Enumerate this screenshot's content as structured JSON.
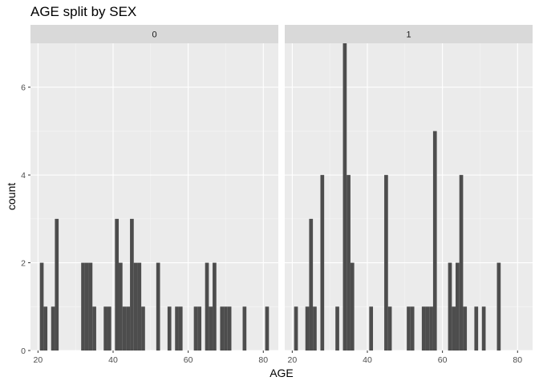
{
  "chart_data": {
    "type": "bar",
    "title": "AGE split by SEX",
    "xlabel": "AGE",
    "ylabel": "count",
    "xlim": [
      18,
      84
    ],
    "ylim": [
      0,
      7
    ],
    "x_ticks": [
      20,
      40,
      60,
      80
    ],
    "y_ticks": [
      0,
      2,
      4,
      6
    ],
    "grid": true,
    "bar_color": "#4d4d4d",
    "panel_background": "#ebebeb",
    "strip_background": "#d9d9d9",
    "facets": [
      {
        "label": "0",
        "bins": [
          {
            "x": 21,
            "count": 2
          },
          {
            "x": 22,
            "count": 1
          },
          {
            "x": 24,
            "count": 1
          },
          {
            "x": 25,
            "count": 3
          },
          {
            "x": 32,
            "count": 2
          },
          {
            "x": 33,
            "count": 2
          },
          {
            "x": 34,
            "count": 2
          },
          {
            "x": 35,
            "count": 1
          },
          {
            "x": 38,
            "count": 1
          },
          {
            "x": 39,
            "count": 1
          },
          {
            "x": 41,
            "count": 3
          },
          {
            "x": 42,
            "count": 2
          },
          {
            "x": 43,
            "count": 1
          },
          {
            "x": 44,
            "count": 1
          },
          {
            "x": 45,
            "count": 3
          },
          {
            "x": 46,
            "count": 2
          },
          {
            "x": 47,
            "count": 2
          },
          {
            "x": 48,
            "count": 1
          },
          {
            "x": 52,
            "count": 2
          },
          {
            "x": 55,
            "count": 1
          },
          {
            "x": 57,
            "count": 1
          },
          {
            "x": 58,
            "count": 1
          },
          {
            "x": 62,
            "count": 1
          },
          {
            "x": 63,
            "count": 1
          },
          {
            "x": 65,
            "count": 2
          },
          {
            "x": 66,
            "count": 1
          },
          {
            "x": 67,
            "count": 2
          },
          {
            "x": 69,
            "count": 1
          },
          {
            "x": 70,
            "count": 1
          },
          {
            "x": 71,
            "count": 1
          },
          {
            "x": 75,
            "count": 1
          },
          {
            "x": 81,
            "count": 1
          }
        ]
      },
      {
        "label": "1",
        "bins": [
          {
            "x": 21,
            "count": 1
          },
          {
            "x": 24,
            "count": 1
          },
          {
            "x": 25,
            "count": 3
          },
          {
            "x": 26,
            "count": 1
          },
          {
            "x": 28,
            "count": 4
          },
          {
            "x": 32,
            "count": 1
          },
          {
            "x": 34,
            "count": 7
          },
          {
            "x": 35,
            "count": 4
          },
          {
            "x": 36,
            "count": 2
          },
          {
            "x": 41,
            "count": 1
          },
          {
            "x": 45,
            "count": 4
          },
          {
            "x": 46,
            "count": 1
          },
          {
            "x": 51,
            "count": 1
          },
          {
            "x": 52,
            "count": 1
          },
          {
            "x": 55,
            "count": 1
          },
          {
            "x": 56,
            "count": 1
          },
          {
            "x": 57,
            "count": 1
          },
          {
            "x": 58,
            "count": 5
          },
          {
            "x": 62,
            "count": 2
          },
          {
            "x": 63,
            "count": 1
          },
          {
            "x": 64,
            "count": 2
          },
          {
            "x": 65,
            "count": 4
          },
          {
            "x": 66,
            "count": 1
          },
          {
            "x": 69,
            "count": 1
          },
          {
            "x": 71,
            "count": 1
          },
          {
            "x": 75,
            "count": 2
          }
        ]
      }
    ]
  }
}
